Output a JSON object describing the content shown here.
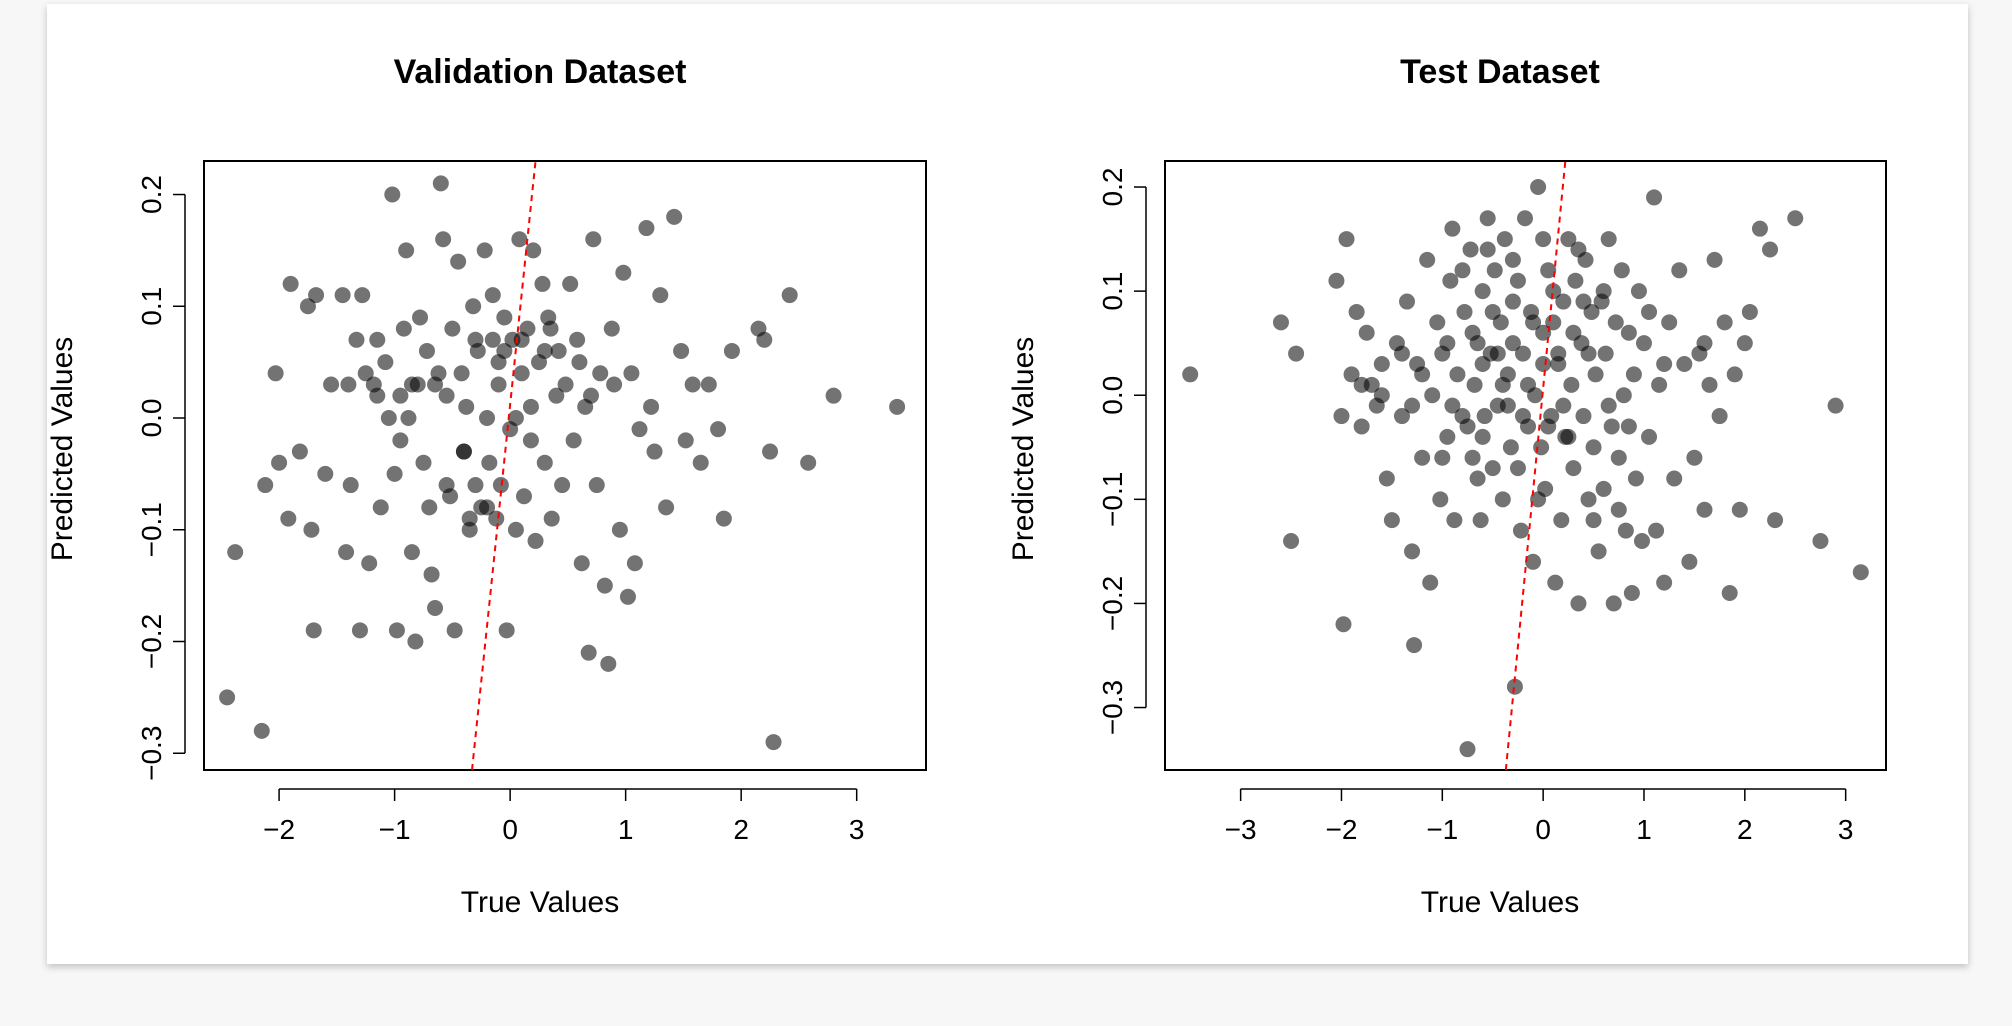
{
  "chart_data": [
    {
      "type": "scatter",
      "title": "Validation Dataset",
      "xlabel": "True Values",
      "ylabel": "Predicted Values",
      "xlim": [
        -2.65,
        3.6
      ],
      "ylim": [
        -0.315,
        0.23
      ],
      "xticks": [
        -2,
        -1,
        0,
        1,
        2,
        3
      ],
      "xtick_labels": [
        "−2",
        "−1",
        "0",
        "1",
        "2",
        "3"
      ],
      "yticks": [
        -0.3,
        -0.2,
        -0.1,
        0.0,
        0.1,
        0.2
      ],
      "ytick_labels": [
        "−0.3",
        "−0.2",
        "−0.1",
        "0.0",
        "0.1",
        "0.2"
      ],
      "reference_line": {
        "x": [
          -0.33,
          0.22
        ],
        "y": [
          -0.315,
          0.23
        ],
        "color": "#ff0000",
        "style": "dashed"
      },
      "grid": false,
      "points": [
        [
          -2.45,
          -0.25
        ],
        [
          -2.38,
          -0.12
        ],
        [
          -2.15,
          -0.28
        ],
        [
          -2.12,
          -0.06
        ],
        [
          -2.03,
          0.04
        ],
        [
          -2.0,
          -0.04
        ],
        [
          -1.92,
          -0.09
        ],
        [
          -1.9,
          0.12
        ],
        [
          -1.82,
          -0.03
        ],
        [
          -1.75,
          0.1
        ],
        [
          -1.72,
          -0.1
        ],
        [
          -1.7,
          -0.19
        ],
        [
          -1.68,
          0.11
        ],
        [
          -1.6,
          -0.05
        ],
        [
          -1.55,
          0.03
        ],
        [
          -1.45,
          0.11
        ],
        [
          -1.42,
          -0.12
        ],
        [
          -1.4,
          0.03
        ],
        [
          -1.38,
          -0.06
        ],
        [
          -1.33,
          0.07
        ],
        [
          -1.3,
          -0.19
        ],
        [
          -1.28,
          0.11
        ],
        [
          -1.25,
          0.04
        ],
        [
          -1.22,
          -0.13
        ],
        [
          -1.18,
          0.03
        ],
        [
          -1.15,
          0.07
        ],
        [
          -1.12,
          -0.08
        ],
        [
          -1.08,
          0.05
        ],
        [
          -1.05,
          0.0
        ],
        [
          -1.02,
          0.2
        ],
        [
          -1.0,
          -0.05
        ],
        [
          -0.98,
          -0.19
        ],
        [
          -0.95,
          0.02
        ],
        [
          -0.92,
          0.08
        ],
        [
          -0.9,
          0.15
        ],
        [
          -0.88,
          0.0
        ],
        [
          -0.85,
          -0.12
        ],
        [
          -0.82,
          -0.2
        ],
        [
          -0.8,
          0.03
        ],
        [
          -0.78,
          0.09
        ],
        [
          -0.75,
          -0.04
        ],
        [
          -0.72,
          0.06
        ],
        [
          -0.7,
          -0.08
        ],
        [
          -0.68,
          -0.14
        ],
        [
          -0.65,
          -0.17
        ],
        [
          -0.62,
          0.04
        ],
        [
          -0.6,
          0.21
        ],
        [
          -0.58,
          0.16
        ],
        [
          -0.55,
          0.02
        ],
        [
          -0.52,
          -0.07
        ],
        [
          -0.5,
          0.08
        ],
        [
          -0.48,
          -0.19
        ],
        [
          -0.45,
          0.14
        ],
        [
          -0.42,
          0.04
        ],
        [
          -0.4,
          -0.03
        ],
        [
          -0.38,
          0.01
        ],
        [
          -0.35,
          -0.09
        ],
        [
          -0.32,
          0.1
        ],
        [
          -0.3,
          -0.06
        ],
        [
          -0.28,
          0.06
        ],
        [
          -0.25,
          -0.08
        ],
        [
          -0.22,
          0.15
        ],
        [
          -0.2,
          0.0
        ],
        [
          -0.18,
          -0.04
        ],
        [
          -0.15,
          0.07
        ],
        [
          -0.12,
          -0.09
        ],
        [
          -0.1,
          0.03
        ],
        [
          -0.08,
          -0.06
        ],
        [
          -0.05,
          0.09
        ],
        [
          -0.03,
          -0.19
        ],
        [
          0.0,
          -0.01
        ],
        [
          0.02,
          0.07
        ],
        [
          0.05,
          -0.1
        ],
        [
          0.08,
          0.16
        ],
        [
          0.1,
          0.04
        ],
        [
          0.12,
          -0.07
        ],
        [
          0.15,
          0.08
        ],
        [
          0.18,
          0.01
        ],
        [
          0.2,
          0.15
        ],
        [
          0.22,
          -0.11
        ],
        [
          0.25,
          0.05
        ],
        [
          0.28,
          0.12
        ],
        [
          0.3,
          -0.04
        ],
        [
          0.33,
          0.09
        ],
        [
          0.36,
          -0.09
        ],
        [
          0.4,
          0.02
        ],
        [
          0.42,
          0.06
        ],
        [
          0.45,
          -0.06
        ],
        [
          0.48,
          0.03
        ],
        [
          0.52,
          0.12
        ],
        [
          0.55,
          -0.02
        ],
        [
          0.58,
          0.07
        ],
        [
          0.62,
          -0.13
        ],
        [
          0.65,
          0.01
        ],
        [
          0.68,
          -0.21
        ],
        [
          0.72,
          0.16
        ],
        [
          0.75,
          -0.06
        ],
        [
          0.78,
          0.04
        ],
        [
          0.82,
          -0.15
        ],
        [
          0.85,
          -0.22
        ],
        [
          0.88,
          0.08
        ],
        [
          0.9,
          0.03
        ],
        [
          0.95,
          -0.1
        ],
        [
          0.98,
          0.13
        ],
        [
          1.02,
          -0.16
        ],
        [
          1.05,
          0.04
        ],
        [
          1.08,
          -0.13
        ],
        [
          1.12,
          -0.01
        ],
        [
          1.18,
          0.17
        ],
        [
          1.22,
          0.01
        ],
        [
          1.25,
          -0.03
        ],
        [
          1.3,
          0.11
        ],
        [
          1.35,
          -0.08
        ],
        [
          1.42,
          0.18
        ],
        [
          1.48,
          0.06
        ],
        [
          1.52,
          -0.02
        ],
        [
          1.58,
          0.03
        ],
        [
          1.65,
          -0.04
        ],
        [
          1.72,
          0.03
        ],
        [
          1.8,
          -0.01
        ],
        [
          1.85,
          -0.09
        ],
        [
          1.92,
          0.06
        ],
        [
          2.15,
          0.08
        ],
        [
          2.2,
          0.07
        ],
        [
          2.25,
          -0.03
        ],
        [
          2.28,
          -0.29
        ],
        [
          2.42,
          0.11
        ],
        [
          2.58,
          -0.04
        ],
        [
          2.8,
          0.02
        ],
        [
          3.35,
          0.01
        ],
        [
          -1.15,
          0.02
        ],
        [
          -0.95,
          -0.02
        ],
        [
          -0.55,
          -0.06
        ],
        [
          -0.4,
          -0.03
        ],
        [
          -0.35,
          -0.1
        ],
        [
          -0.2,
          -0.08
        ],
        [
          -0.15,
          0.11
        ],
        [
          -0.05,
          0.06
        ],
        [
          0.05,
          0.0
        ],
        [
          0.18,
          -0.02
        ],
        [
          0.3,
          0.06
        ],
        [
          -0.85,
          0.03
        ],
        [
          -0.65,
          0.03
        ],
        [
          -0.3,
          0.07
        ],
        [
          -0.1,
          0.05
        ],
        [
          0.1,
          0.07
        ],
        [
          0.35,
          0.08
        ],
        [
          0.6,
          0.05
        ],
        [
          0.7,
          0.02
        ]
      ]
    },
    {
      "type": "scatter",
      "title": "Test Dataset",
      "xlabel": "True Values",
      "ylabel": "Predicted Values",
      "xlim": [
        -3.75,
        3.4
      ],
      "ylim": [
        -0.36,
        0.225
      ],
      "xticks": [
        -3,
        -2,
        -1,
        0,
        1,
        2,
        3
      ],
      "xtick_labels": [
        "−3",
        "−2",
        "−1",
        "0",
        "1",
        "2",
        "3"
      ],
      "yticks": [
        -0.3,
        -0.2,
        -0.1,
        0.0,
        0.1,
        0.2
      ],
      "ytick_labels": [
        "−0.3",
        "−0.2",
        "−0.1",
        "0.0",
        "0.1",
        "0.2"
      ],
      "reference_line": {
        "x": [
          -0.37,
          0.22
        ],
        "y": [
          -0.36,
          0.225
        ],
        "color": "#ff0000",
        "style": "dashed"
      },
      "grid": false,
      "points": [
        [
          -3.5,
          0.02
        ],
        [
          -2.6,
          0.07
        ],
        [
          -2.5,
          -0.14
        ],
        [
          -2.45,
          0.04
        ],
        [
          -2.05,
          0.11
        ],
        [
          -2.0,
          -0.02
        ],
        [
          -1.98,
          -0.22
        ],
        [
          -1.95,
          0.15
        ],
        [
          -1.9,
          0.02
        ],
        [
          -1.85,
          0.08
        ],
        [
          -1.8,
          -0.03
        ],
        [
          -1.75,
          0.06
        ],
        [
          -1.7,
          0.01
        ],
        [
          -1.65,
          -0.01
        ],
        [
          -1.6,
          0.03
        ],
        [
          -1.55,
          -0.08
        ],
        [
          -1.5,
          -0.12
        ],
        [
          -1.45,
          0.05
        ],
        [
          -1.4,
          -0.02
        ],
        [
          -1.35,
          0.09
        ],
        [
          -1.3,
          -0.15
        ],
        [
          -1.28,
          -0.24
        ],
        [
          -1.25,
          0.03
        ],
        [
          -1.2,
          -0.06
        ],
        [
          -1.15,
          0.13
        ],
        [
          -1.12,
          -0.18
        ],
        [
          -1.1,
          0.0
        ],
        [
          -1.05,
          0.07
        ],
        [
          -1.02,
          -0.1
        ],
        [
          -1.0,
          0.04
        ],
        [
          -0.95,
          -0.04
        ],
        [
          -0.92,
          0.11
        ],
        [
          -0.9,
          0.16
        ],
        [
          -0.88,
          -0.12
        ],
        [
          -0.85,
          0.02
        ],
        [
          -0.8,
          -0.02
        ],
        [
          -0.78,
          0.08
        ],
        [
          -0.75,
          -0.34
        ],
        [
          -0.72,
          0.14
        ],
        [
          -0.7,
          -0.06
        ],
        [
          -0.68,
          0.01
        ],
        [
          -0.65,
          0.05
        ],
        [
          -0.62,
          -0.12
        ],
        [
          -0.6,
          0.1
        ],
        [
          -0.58,
          -0.02
        ],
        [
          -0.55,
          0.17
        ],
        [
          -0.52,
          0.04
        ],
        [
          -0.5,
          -0.07
        ],
        [
          -0.48,
          0.12
        ],
        [
          -0.45,
          -0.01
        ],
        [
          -0.42,
          0.07
        ],
        [
          -0.4,
          -0.1
        ],
        [
          -0.38,
          0.15
        ],
        [
          -0.35,
          0.02
        ],
        [
          -0.32,
          -0.05
        ],
        [
          -0.3,
          0.09
        ],
        [
          -0.28,
          -0.28
        ],
        [
          -0.25,
          0.11
        ],
        [
          -0.22,
          -0.13
        ],
        [
          -0.2,
          0.04
        ],
        [
          -0.18,
          0.17
        ],
        [
          -0.15,
          -0.03
        ],
        [
          -0.12,
          0.08
        ],
        [
          -0.1,
          -0.16
        ],
        [
          -0.08,
          0.0
        ],
        [
          -0.05,
          0.2
        ],
        [
          -0.02,
          -0.05
        ],
        [
          0.0,
          0.06
        ],
        [
          0.02,
          -0.09
        ],
        [
          0.05,
          0.12
        ],
        [
          0.08,
          -0.02
        ],
        [
          0.1,
          0.07
        ],
        [
          0.12,
          -0.18
        ],
        [
          0.15,
          0.03
        ],
        [
          0.18,
          -0.12
        ],
        [
          0.2,
          0.09
        ],
        [
          0.22,
          -0.04
        ],
        [
          0.25,
          0.15
        ],
        [
          0.28,
          0.01
        ],
        [
          0.3,
          -0.07
        ],
        [
          0.32,
          0.11
        ],
        [
          0.35,
          -0.2
        ],
        [
          0.38,
          0.05
        ],
        [
          0.4,
          -0.02
        ],
        [
          0.42,
          0.13
        ],
        [
          0.45,
          -0.1
        ],
        [
          0.48,
          0.08
        ],
        [
          0.5,
          -0.05
        ],
        [
          0.52,
          0.02
        ],
        [
          0.55,
          -0.15
        ],
        [
          0.58,
          0.09
        ],
        [
          0.6,
          -0.09
        ],
        [
          0.62,
          0.04
        ],
        [
          0.65,
          0.15
        ],
        [
          0.68,
          -0.03
        ],
        [
          0.7,
          -0.2
        ],
        [
          0.72,
          0.07
        ],
        [
          0.75,
          -0.06
        ],
        [
          0.78,
          0.12
        ],
        [
          0.8,
          0.0
        ],
        [
          0.82,
          -0.13
        ],
        [
          0.85,
          0.06
        ],
        [
          0.88,
          -0.19
        ],
        [
          0.9,
          0.02
        ],
        [
          0.92,
          -0.08
        ],
        [
          0.95,
          0.1
        ],
        [
          0.98,
          -0.14
        ],
        [
          1.0,
          0.05
        ],
        [
          1.05,
          -0.04
        ],
        [
          1.1,
          0.19
        ],
        [
          1.12,
          -0.13
        ],
        [
          1.15,
          0.01
        ],
        [
          1.2,
          -0.18
        ],
        [
          1.25,
          0.07
        ],
        [
          1.3,
          -0.08
        ],
        [
          1.35,
          0.12
        ],
        [
          1.4,
          0.03
        ],
        [
          1.45,
          -0.16
        ],
        [
          1.5,
          -0.06
        ],
        [
          1.55,
          0.04
        ],
        [
          1.6,
          -0.11
        ],
        [
          1.65,
          0.01
        ],
        [
          1.7,
          0.13
        ],
        [
          1.75,
          -0.02
        ],
        [
          1.8,
          0.07
        ],
        [
          1.85,
          -0.19
        ],
        [
          1.9,
          0.02
        ],
        [
          1.95,
          -0.11
        ],
        [
          2.0,
          0.05
        ],
        [
          2.05,
          0.08
        ],
        [
          2.15,
          0.16
        ],
        [
          2.25,
          0.14
        ],
        [
          2.3,
          -0.12
        ],
        [
          2.5,
          0.17
        ],
        [
          2.75,
          -0.14
        ],
        [
          2.9,
          -0.01
        ],
        [
          3.15,
          -0.17
        ],
        [
          -0.6,
          0.03
        ],
        [
          -0.4,
          0.01
        ],
        [
          -0.2,
          -0.02
        ],
        [
          0.0,
          0.03
        ],
        [
          0.2,
          -0.01
        ],
        [
          -0.7,
          0.06
        ],
        [
          -0.5,
          0.08
        ],
        [
          -0.3,
          0.05
        ],
        [
          -0.1,
          0.07
        ],
        [
          0.1,
          0.1
        ],
        [
          0.3,
          0.06
        ],
        [
          -0.9,
          -0.01
        ],
        [
          -0.6,
          -0.04
        ],
        [
          -0.35,
          -0.01
        ],
        [
          -0.15,
          0.01
        ],
        [
          0.05,
          -0.03
        ],
        [
          0.25,
          -0.04
        ],
        [
          0.45,
          0.04
        ],
        [
          0.65,
          -0.01
        ],
        [
          -1.2,
          0.02
        ],
        [
          -0.95,
          0.05
        ],
        [
          -0.75,
          -0.03
        ],
        [
          -0.45,
          0.04
        ],
        [
          -0.25,
          -0.07
        ],
        [
          0.15,
          0.04
        ],
        [
          0.4,
          0.09
        ],
        [
          0.6,
          0.1
        ],
        [
          0.85,
          -0.03
        ],
        [
          1.05,
          0.08
        ],
        [
          -0.8,
          0.12
        ],
        [
          -0.55,
          0.14
        ],
        [
          -0.3,
          0.13
        ],
        [
          0.0,
          0.15
        ],
        [
          0.35,
          0.14
        ],
        [
          -1.0,
          -0.06
        ],
        [
          -0.65,
          -0.08
        ],
        [
          -0.05,
          -0.1
        ],
        [
          0.5,
          -0.12
        ],
        [
          0.75,
          -0.11
        ],
        [
          1.2,
          0.03
        ],
        [
          1.6,
          0.05
        ],
        [
          -1.4,
          0.04
        ],
        [
          -1.6,
          0.0
        ],
        [
          -1.8,
          0.01
        ],
        [
          -1.3,
          -0.01
        ]
      ]
    }
  ]
}
